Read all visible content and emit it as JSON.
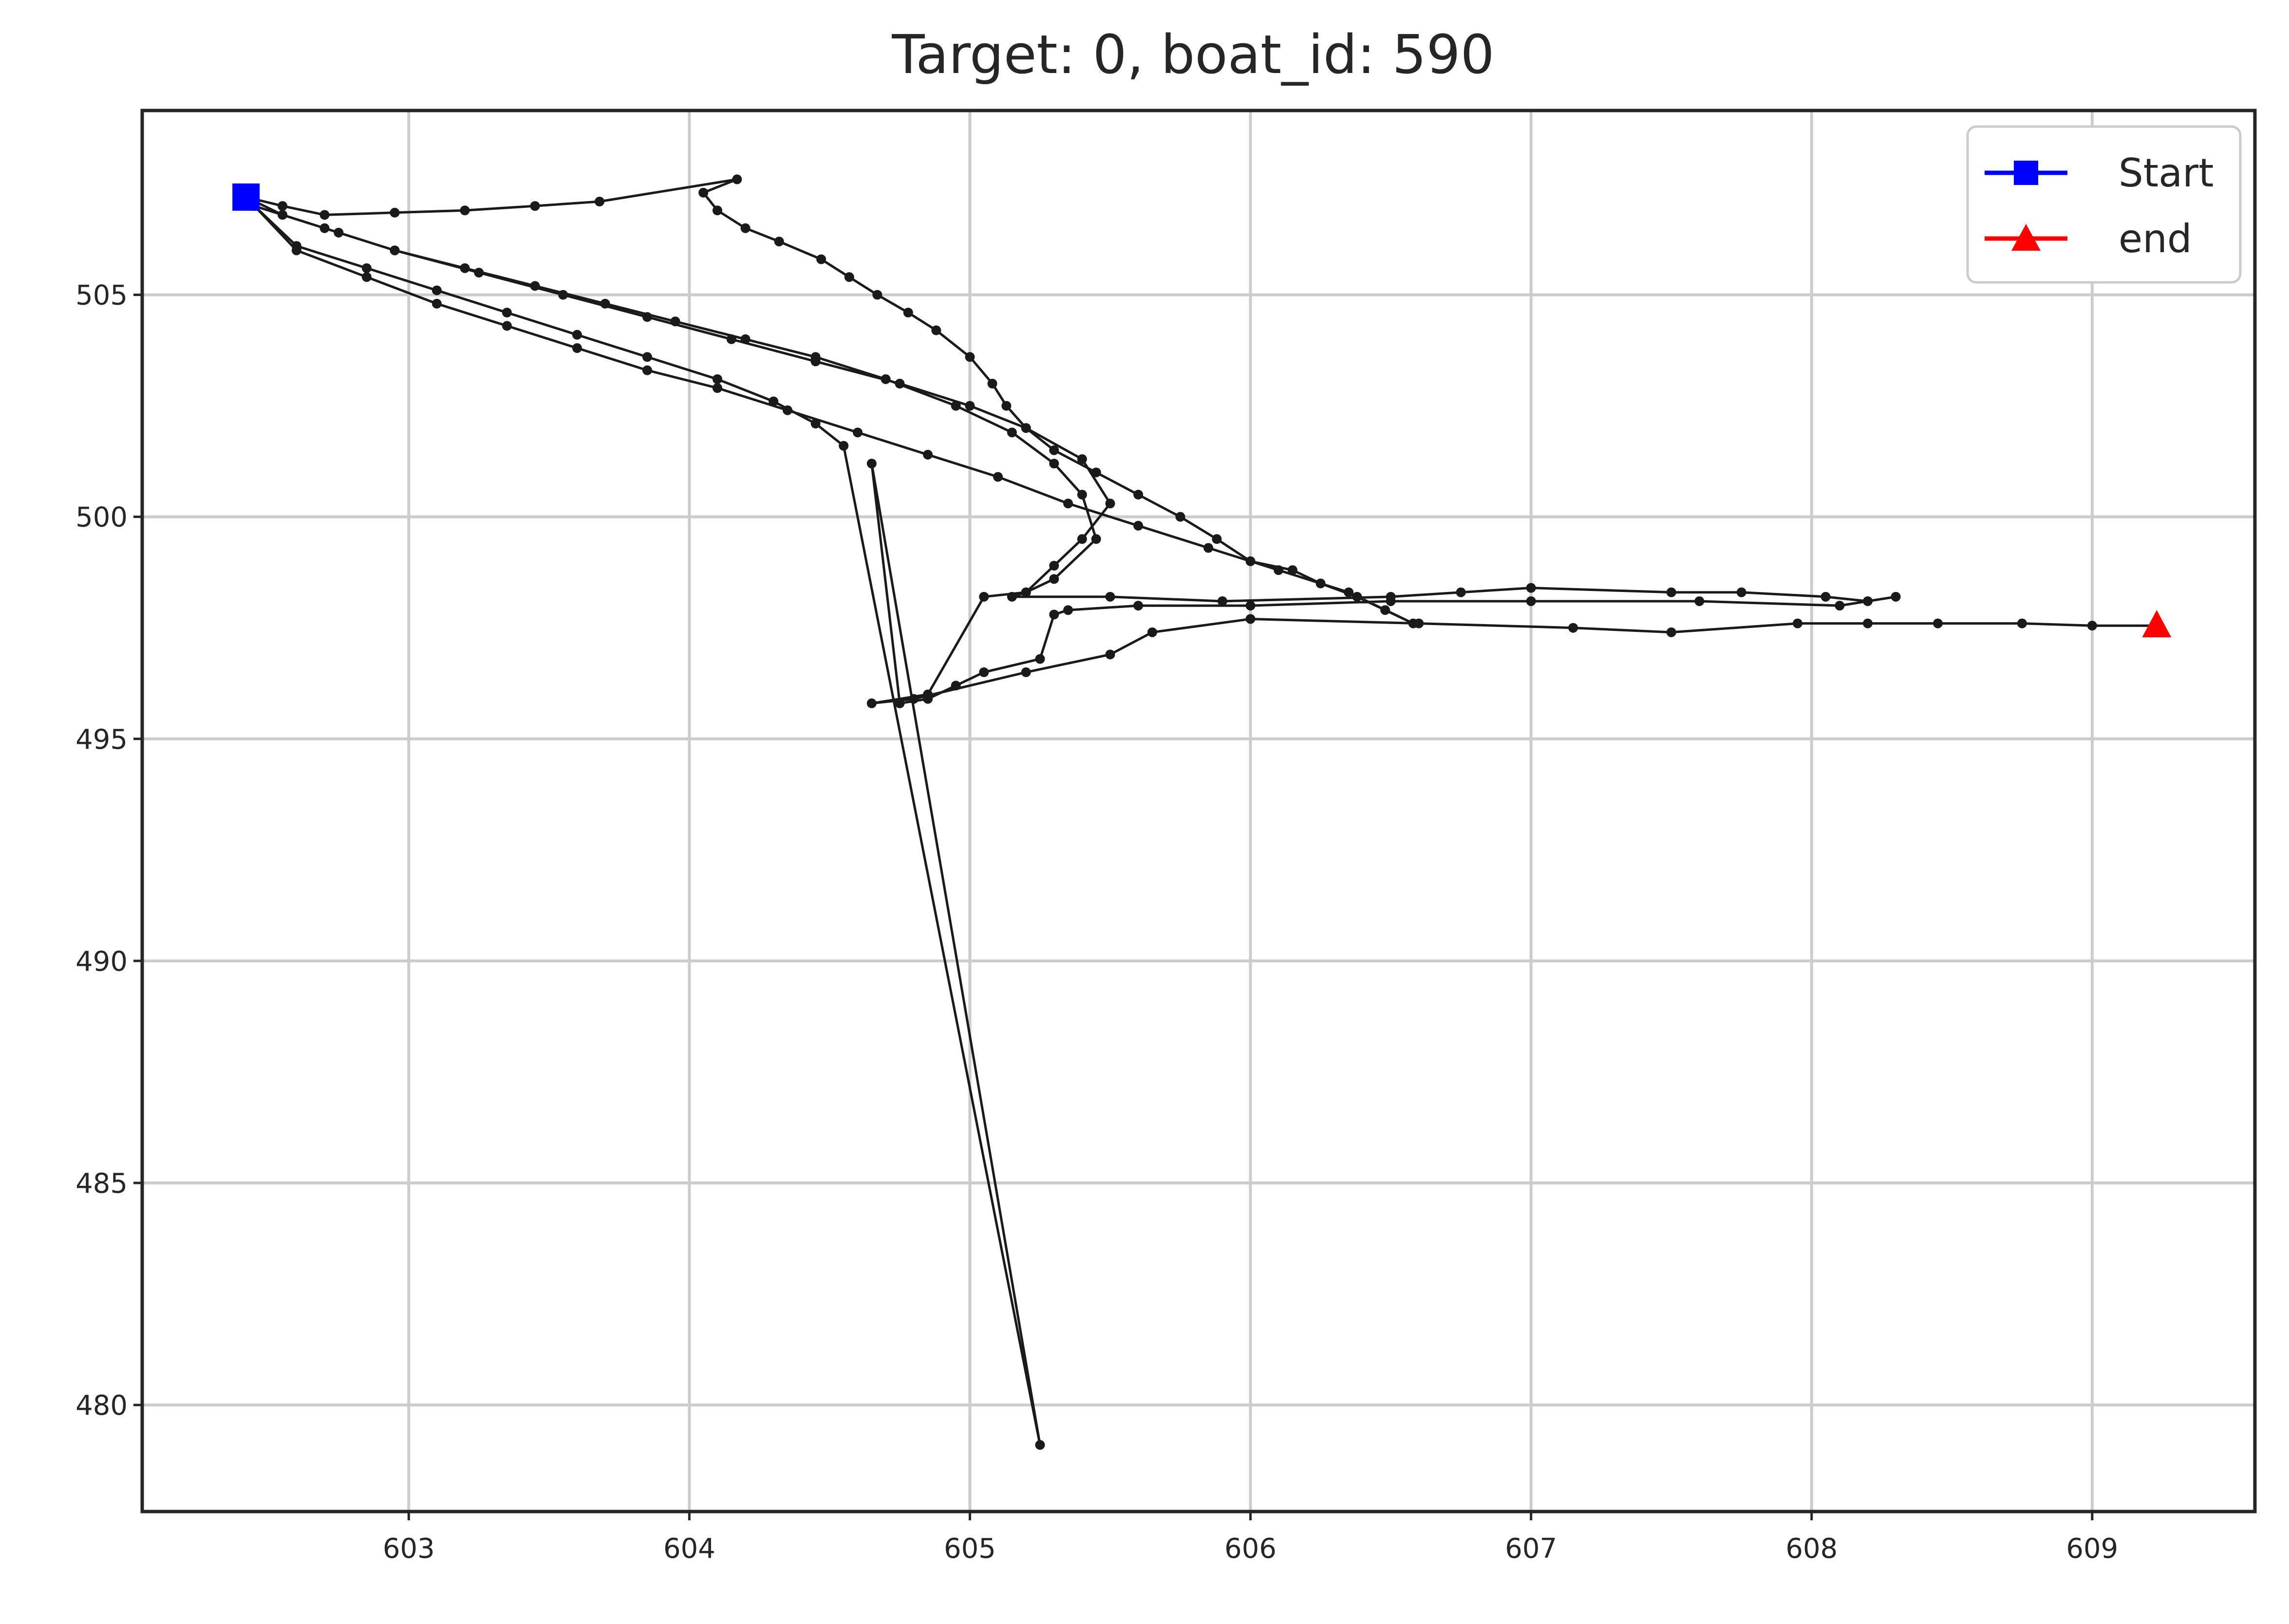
{
  "chart_data": {
    "type": "line",
    "title": "Target: 0, boat_id: 590",
    "xlabel": "",
    "ylabel": "",
    "xlim": [
      602.05,
      609.58
    ],
    "ylim": [
      477.6,
      509.15
    ],
    "xticks": [
      603,
      604,
      605,
      606,
      607,
      608,
      609
    ],
    "yticks": [
      480,
      485,
      490,
      495,
      500,
      505
    ],
    "xtick_labels": [
      "603",
      "604",
      "605",
      "606",
      "607",
      "608",
      "609"
    ],
    "ytick_labels": [
      "480",
      "485",
      "490",
      "495",
      "500",
      "505"
    ],
    "grid": true,
    "legend": {
      "placement": "top-right",
      "entries": [
        {
          "label": "Start",
          "color": "#0000ff",
          "marker": "square"
        },
        {
          "label": "end",
          "color": "#ff0000",
          "marker": "triangle"
        }
      ]
    },
    "series": [
      {
        "line_color": "#1a1a1a",
        "x": [
          602.42,
          602.55,
          602.7,
          602.95,
          603.2,
          603.45,
          603.68,
          604.17,
          604.05,
          604.1,
          604.2,
          604.32,
          604.47,
          604.57,
          604.67,
          604.78,
          604.88,
          605.0,
          605.08,
          605.13,
          605.2,
          605.3,
          605.45,
          605.6,
          605.75,
          605.88,
          606.0,
          606.15,
          606.25,
          606.38,
          606.48,
          606.58,
          606.35,
          606.1,
          605.85,
          605.6,
          605.35,
          605.1,
          604.85,
          604.6,
          604.35,
          604.1,
          603.85,
          603.6,
          603.35,
          603.1,
          602.85,
          602.6,
          602.42,
          602.55,
          602.75,
          602.95,
          603.2,
          603.45,
          603.7,
          603.95,
          604.2,
          604.45,
          604.7,
          604.95,
          605.15,
          605.3,
          605.4,
          605.45,
          605.3,
          605.2,
          605.15,
          605.5,
          605.9,
          606.5,
          606.75,
          607.0,
          607.5,
          607.75,
          608.05,
          608.2,
          608.3,
          608.1,
          607.6,
          607.0,
          606.5,
          606.0,
          605.6,
          605.35,
          605.3,
          605.25,
          605.05,
          604.95,
          604.85,
          604.75,
          604.65,
          605.25,
          604.55,
          604.45,
          604.3,
          604.1,
          603.85,
          603.6,
          603.35,
          603.1,
          602.85,
          602.6,
          602.45,
          602.7,
          602.95,
          603.25,
          603.55,
          603.85,
          604.15,
          604.45,
          604.75,
          605.0,
          605.2,
          605.4,
          605.5,
          605.4,
          605.3,
          605.2,
          605.05,
          604.85,
          604.65,
          604.8,
          605.2,
          605.5,
          605.65,
          606.0,
          606.6,
          607.15,
          607.5,
          607.95,
          608.2,
          608.45,
          608.75,
          609.0,
          609.23
        ],
        "y": [
          507.2,
          507.0,
          506.8,
          506.85,
          506.9,
          507.0,
          507.1,
          507.6,
          507.3,
          506.9,
          506.5,
          506.2,
          505.8,
          505.4,
          505.0,
          504.6,
          504.2,
          503.6,
          503.0,
          502.5,
          502.0,
          501.5,
          501.0,
          500.5,
          500.0,
          499.5,
          499.0,
          498.8,
          498.5,
          498.2,
          497.9,
          497.6,
          498.3,
          498.8,
          499.3,
          499.8,
          500.3,
          500.9,
          501.4,
          501.9,
          502.4,
          502.9,
          503.3,
          503.8,
          504.3,
          504.8,
          505.4,
          506.0,
          507.2,
          506.8,
          506.4,
          506.0,
          505.6,
          505.2,
          504.8,
          504.4,
          504.0,
          503.6,
          503.1,
          502.5,
          501.9,
          501.2,
          500.5,
          499.5,
          498.6,
          498.3,
          498.2,
          498.2,
          498.1,
          498.2,
          498.3,
          498.4,
          498.3,
          498.3,
          498.2,
          498.1,
          498.2,
          498.0,
          498.1,
          498.1,
          498.1,
          498.0,
          498.0,
          497.9,
          497.8,
          496.8,
          496.5,
          496.2,
          495.9,
          495.8,
          501.2,
          479.1,
          501.6,
          502.1,
          502.6,
          503.1,
          503.6,
          504.1,
          504.6,
          505.1,
          505.6,
          506.1,
          507.0,
          506.5,
          506.0,
          505.5,
          505.0,
          504.5,
          504.0,
          503.5,
          503.0,
          502.5,
          502.0,
          501.3,
          500.3,
          499.5,
          498.9,
          498.3,
          498.2,
          496.0,
          495.8,
          495.9,
          496.5,
          496.9,
          497.4,
          497.7,
          497.6,
          497.5,
          497.4,
          497.6,
          497.6,
          497.6,
          497.6,
          497.55,
          497.55
        ]
      }
    ],
    "start_point": {
      "label": "Start",
      "x": 602.42,
      "y": 507.2
    },
    "end_point": {
      "label": "end",
      "x": 609.23,
      "y": 497.55
    }
  }
}
